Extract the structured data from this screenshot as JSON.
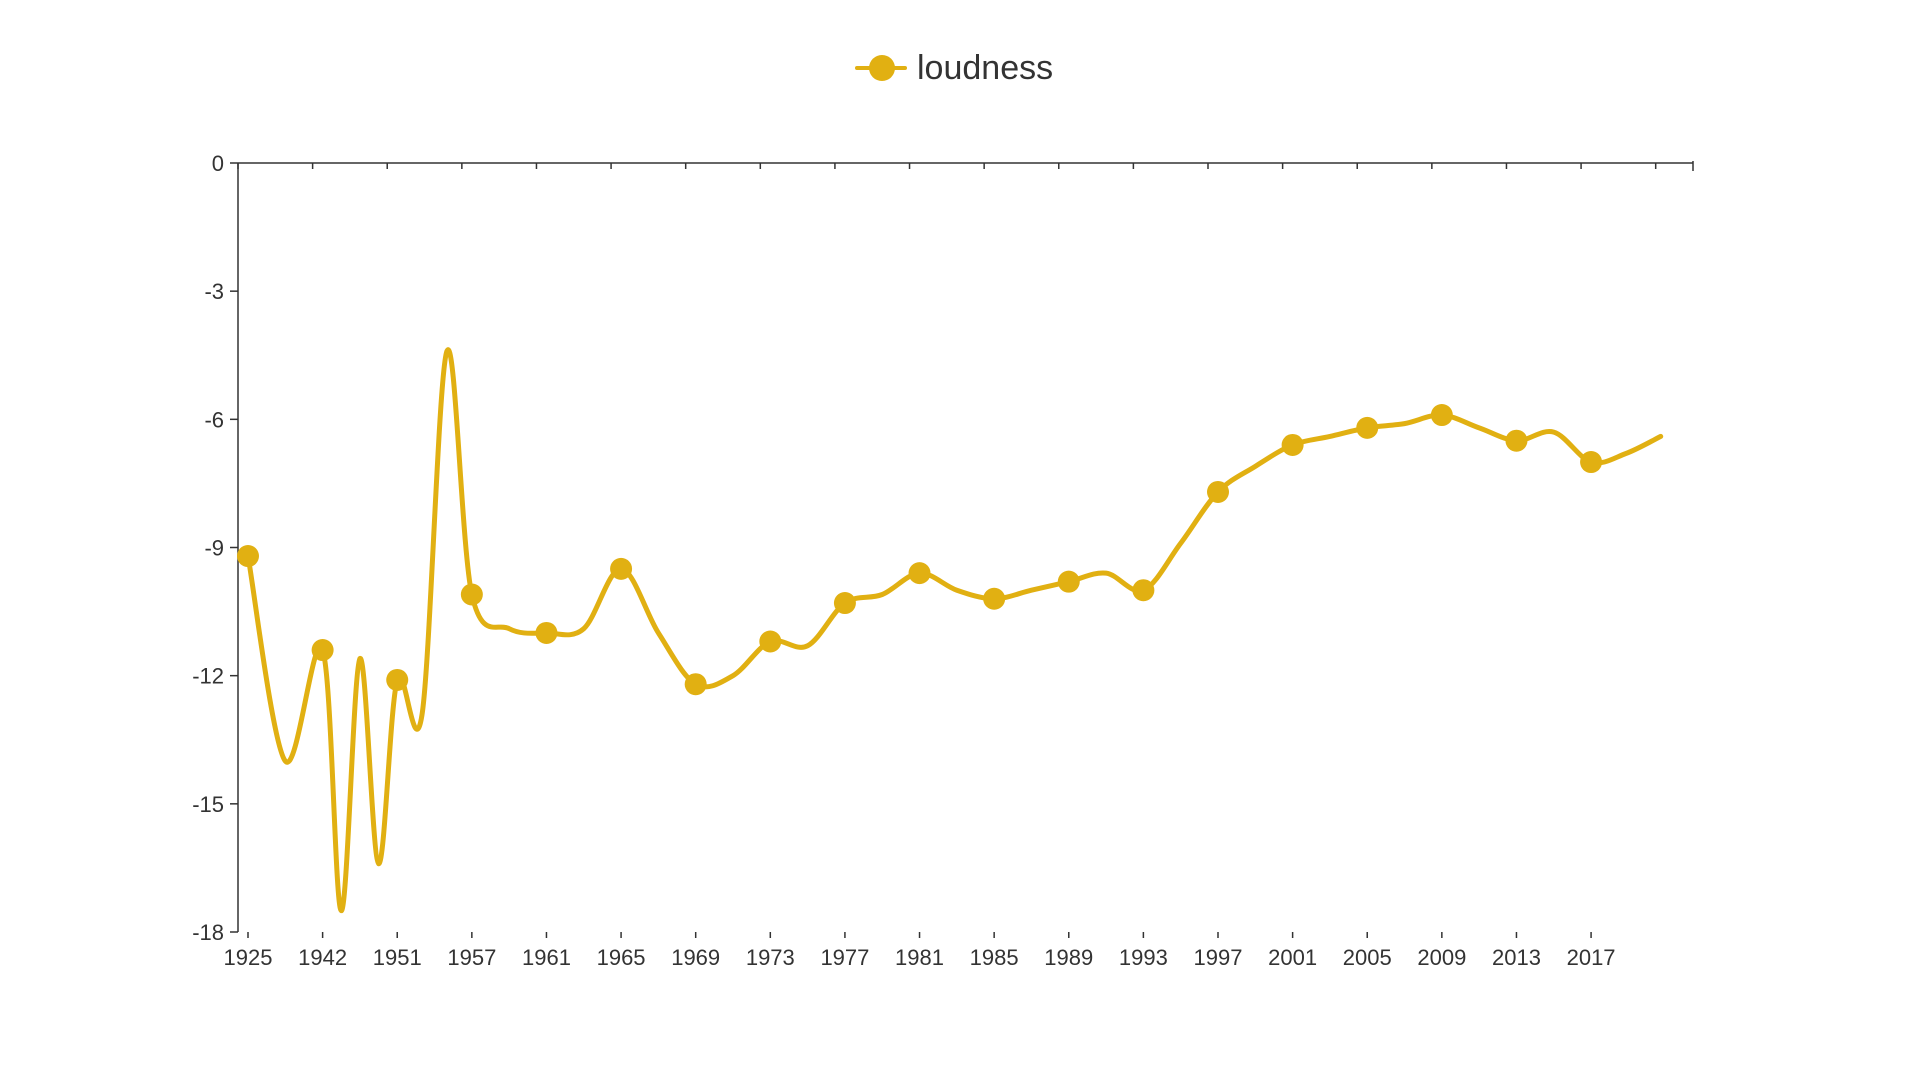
{
  "colors": {
    "series": "#e1b012",
    "axis": "#333333",
    "background": "#ffffff"
  },
  "legend": {
    "placement": "top-center",
    "label": "loudness"
  },
  "chart_data": {
    "type": "line",
    "smooth": true,
    "grid": false,
    "legend_position": "top-center",
    "title": "",
    "xlabel": "",
    "ylabel": "",
    "ylim": [
      -18,
      0
    ],
    "y_ticks": [
      0,
      -3,
      -6,
      -9,
      -12,
      -15,
      -18
    ],
    "x_tick_labels": [
      "1925",
      "1942",
      "1951",
      "1957",
      "1961",
      "1965",
      "1969",
      "1973",
      "1977",
      "1981",
      "1985",
      "1989",
      "1993",
      "1997",
      "2001",
      "2005",
      "2009",
      "2013",
      "2017"
    ],
    "x": [
      "1925",
      "1935",
      "1942",
      "1945",
      "1947",
      "1949",
      "1951",
      "1953",
      "1955",
      "1957",
      "1959",
      "1961",
      "1963",
      "1965",
      "1967",
      "1969",
      "1971",
      "1973",
      "1975",
      "1977",
      "1979",
      "1981",
      "1983",
      "1985",
      "1987",
      "1989",
      "1991",
      "1993",
      "1995",
      "1997",
      "1999",
      "2001",
      "2003",
      "2005",
      "2007",
      "2009",
      "2011",
      "2013",
      "2015",
      "2017",
      "2019",
      "2020"
    ],
    "series": [
      {
        "name": "loudness",
        "values": [
          -9.2,
          -14.0,
          -11.4,
          -17.5,
          -11.6,
          -16.4,
          -12.1,
          -12.9,
          -4.4,
          -10.1,
          -10.9,
          -11.0,
          -10.9,
          -9.5,
          -11.0,
          -12.2,
          -12.0,
          -11.2,
          -11.3,
          -10.3,
          -10.1,
          -9.6,
          -10.0,
          -10.2,
          -10.0,
          -9.8,
          -9.6,
          -10.0,
          -8.9,
          -7.7,
          -7.1,
          -6.6,
          -6.4,
          -6.2,
          -6.1,
          -5.9,
          -6.2,
          -6.5,
          -6.3,
          -7.0,
          -6.8,
          -6.4
        ],
        "marker_indices": [
          0,
          2,
          6,
          9,
          11,
          13,
          15,
          17,
          19,
          21,
          23,
          25,
          27,
          29,
          31,
          33,
          35,
          37,
          39
        ]
      }
    ]
  }
}
